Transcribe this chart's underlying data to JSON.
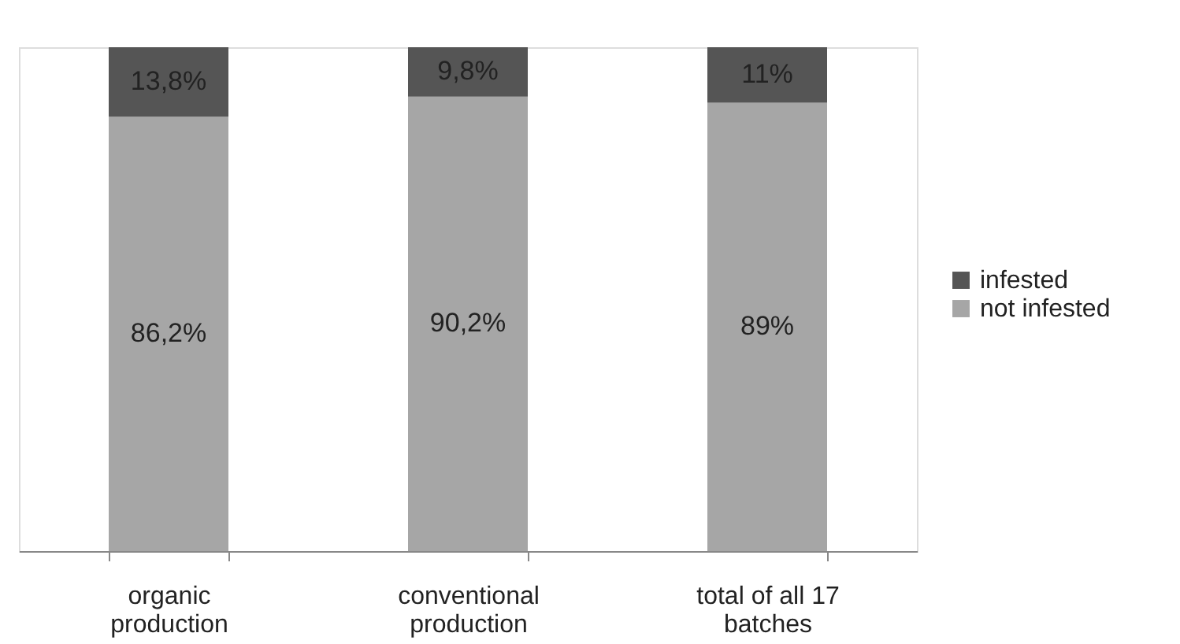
{
  "chart_data": {
    "type": "bar",
    "stacked": true,
    "categories": [
      "organic production",
      "conventional production",
      "total of all 17 batches"
    ],
    "series": [
      {
        "name": "not infested",
        "color": "#a6a6a6",
        "values": [
          86.2,
          90.2,
          89
        ],
        "value_labels": [
          "86,2%",
          "90,2%",
          "89%"
        ]
      },
      {
        "name": "infested",
        "color": "#555555",
        "values": [
          13.8,
          9.8,
          11
        ],
        "value_labels": [
          "13,8%",
          "9,8%",
          "11%"
        ]
      }
    ],
    "ylim": [
      0,
      100
    ],
    "legend": "right",
    "grid": false,
    "tick_labels": "x"
  }
}
